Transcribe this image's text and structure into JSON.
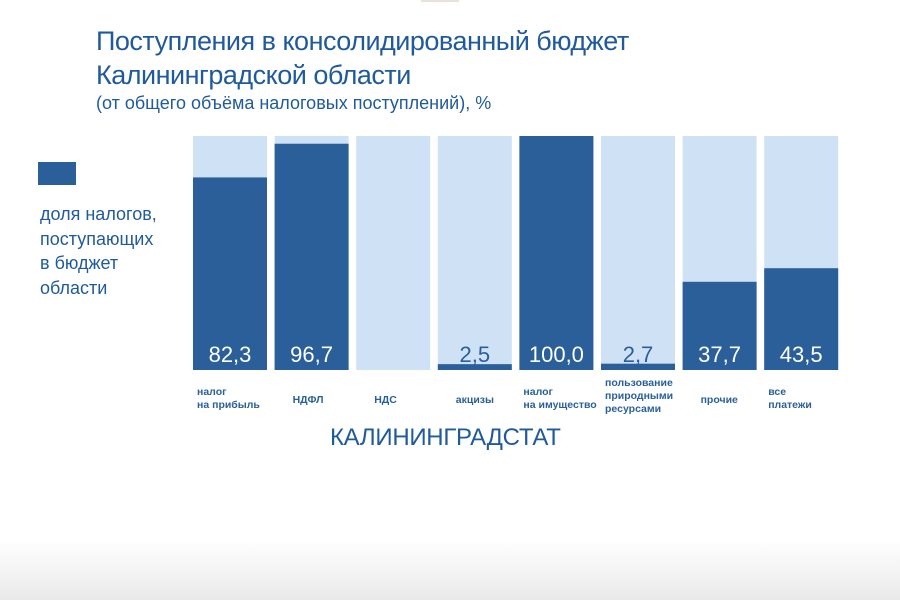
{
  "chart_data": {
    "type": "bar",
    "stacked_to_100": true,
    "title": "Поступления в консолидированный бюджет Калининградской области",
    "subtitle": "(от общего объёма налоговых поступлений), %",
    "ylim": [
      0,
      100
    ],
    "grid": false,
    "legend": {
      "position": "left",
      "entries": [
        "доля налогов, поступающих в бюджет области"
      ]
    },
    "categories": [
      [
        "налог",
        "на прибыль"
      ],
      [
        "НДФЛ"
      ],
      [
        "НДС"
      ],
      [
        "акцизы"
      ],
      [
        "налог",
        "на имущество"
      ],
      [
        "пользование",
        "природными",
        "ресурсами"
      ],
      [
        "прочие"
      ],
      [
        "все",
        "платежи"
      ]
    ],
    "values": [
      82.3,
      96.7,
      0,
      2.5,
      100.0,
      2.7,
      37.7,
      43.5
    ],
    "value_labels": [
      "82,3",
      "96,7",
      "",
      "2,5",
      "100,0",
      "2,7",
      "37,7",
      "43,5"
    ],
    "colors": {
      "share": "#2a5f9a",
      "remainder": "#cfe2f5"
    }
  },
  "legend_lines": [
    "доля налогов,",
    "поступающих",
    "в бюджет",
    "области"
  ],
  "source": "КАЛИНИНГРАДСТАТ"
}
